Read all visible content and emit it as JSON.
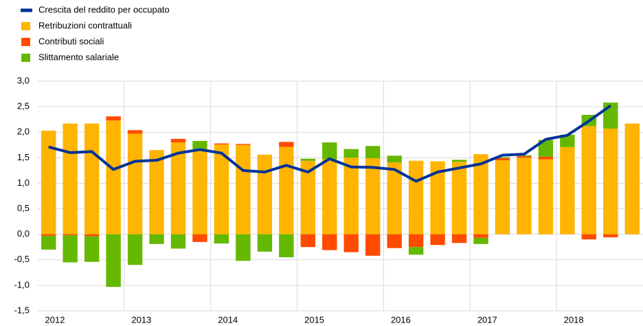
{
  "chart_data": {
    "type": "stacked_bar_line",
    "categories": [
      "2012",
      null,
      null,
      null,
      "2013",
      null,
      null,
      null,
      "2014",
      null,
      null,
      null,
      "2015",
      null,
      null,
      null,
      "2016",
      null,
      null,
      null,
      "2017",
      null,
      null,
      null,
      "2018",
      null,
      null,
      null
    ],
    "series": [
      {
        "name": "Crescita del reddito per occupato",
        "color": "#003299",
        "kind": "line",
        "values": [
          1.71,
          1.6,
          1.62,
          1.27,
          1.43,
          1.45,
          1.59,
          1.66,
          1.59,
          1.25,
          1.22,
          1.35,
          1.22,
          1.48,
          1.32,
          1.31,
          1.27,
          1.04,
          1.22,
          1.3,
          1.38,
          1.55,
          1.57,
          1.86,
          1.94,
          2.22,
          2.52,
          null
        ]
      },
      {
        "name": "Retribuzioni contrattuali",
        "color": "#ffb400",
        "kind": "bar",
        "values": [
          2.03,
          2.17,
          2.17,
          2.23,
          1.97,
          1.65,
          1.8,
          1.67,
          1.76,
          1.75,
          1.56,
          1.71,
          1.44,
          1.47,
          1.5,
          1.49,
          1.41,
          1.44,
          1.43,
          1.42,
          1.57,
          1.45,
          1.5,
          1.47,
          1.71,
          2.12,
          2.07,
          2.17
        ]
      },
      {
        "name": "Contributi sociali",
        "color": "#ff4b00",
        "kind": "bar",
        "values": [
          -0.03,
          -0.02,
          -0.04,
          0.08,
          0.07,
          0,
          0.07,
          -0.15,
          0.02,
          0.02,
          0,
          0.1,
          -0.25,
          -0.31,
          -0.35,
          -0.42,
          -0.27,
          -0.25,
          -0.21,
          -0.17,
          -0.07,
          0.04,
          0.03,
          0.05,
          0,
          -0.1,
          -0.06,
          0
        ]
      },
      {
        "name": "Slittamento salariale",
        "color": "#65b800",
        "kind": "bar",
        "values": [
          -0.27,
          -0.53,
          -0.5,
          -1.03,
          -0.6,
          -0.19,
          -0.28,
          0.16,
          -0.18,
          -0.52,
          -0.34,
          -0.45,
          0.04,
          0.33,
          0.17,
          0.24,
          0.13,
          -0.15,
          0,
          0.04,
          -0.12,
          0.02,
          0.02,
          0.33,
          0.24,
          0.22,
          0.51,
          0
        ]
      }
    ],
    "ylim": [
      -1.5,
      3.0
    ],
    "yticks": [
      {
        "value": -1.5,
        "label": "-1,5"
      },
      {
        "value": -1.0,
        "label": "-1,0"
      },
      {
        "value": -0.5,
        "label": "-0,5"
      },
      {
        "value": 0,
        "label": "0,0"
      },
      {
        "value": 0.5,
        "label": "0,5"
      },
      {
        "value": 1.0,
        "label": "1,0"
      },
      {
        "value": 1.5,
        "label": "1,5"
      },
      {
        "value": 2.0,
        "label": "2,0"
      },
      {
        "value": 2.5,
        "label": "2,5"
      },
      {
        "value": 3.0,
        "label": "3,0"
      }
    ],
    "grid": true
  }
}
